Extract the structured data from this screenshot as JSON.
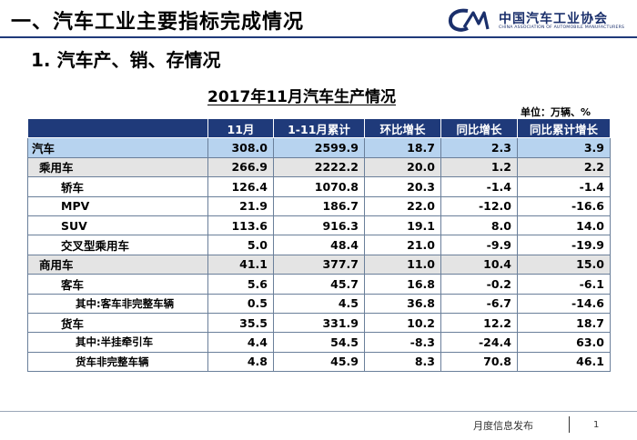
{
  "header": {
    "section_title": "一、汽车工业主要指标完成情况",
    "logo_cn": "中国汽车工业协会",
    "logo_en": "CHINA ASSOCIATION OF AUTOMOBILE MANUFACTURERS",
    "logo_mark_text": "CA",
    "brand_color": "#1a2f6b"
  },
  "sub_title": "1. 汽车产、销、存情况",
  "table": {
    "title": "2017年11月汽车生产情况",
    "unit": "单位：万辆、%",
    "columns": [
      "",
      "11月",
      "1-11月累计",
      "环比增长",
      "同比增长",
      "同比累计增长"
    ],
    "rows": [
      {
        "name": "汽车",
        "level": 0,
        "values": [
          "308.0",
          "2599.9",
          "18.7",
          "2.3",
          "3.9"
        ]
      },
      {
        "name": "乘用车",
        "level": 1,
        "values": [
          "266.9",
          "2222.2",
          "20.0",
          "1.2",
          "2.2"
        ]
      },
      {
        "name": "轿车",
        "level": 2,
        "values": [
          "126.4",
          "1070.8",
          "20.3",
          "-1.4",
          "-1.4"
        ]
      },
      {
        "name": "MPV",
        "level": 2,
        "values": [
          "21.9",
          "186.7",
          "22.0",
          "-12.0",
          "-16.6"
        ]
      },
      {
        "name": "SUV",
        "level": 2,
        "values": [
          "113.6",
          "916.3",
          "19.1",
          "8.0",
          "14.0"
        ]
      },
      {
        "name": "交叉型乘用车",
        "level": 2,
        "values": [
          "5.0",
          "48.4",
          "21.0",
          "-9.9",
          "-19.9"
        ]
      },
      {
        "name": "商用车",
        "level": 1,
        "values": [
          "41.1",
          "377.7",
          "11.0",
          "10.4",
          "15.0"
        ]
      },
      {
        "name": "客车",
        "level": 2,
        "values": [
          "5.6",
          "45.7",
          "16.8",
          "-0.2",
          "-6.1"
        ]
      },
      {
        "name": "其中:客车非完整车辆",
        "level": 3,
        "values": [
          "0.5",
          "4.5",
          "36.8",
          "-6.7",
          "-14.6"
        ]
      },
      {
        "name": "货车",
        "level": 2,
        "values": [
          "35.5",
          "331.9",
          "10.2",
          "12.2",
          "18.7"
        ]
      },
      {
        "name": "其中:半挂牵引车",
        "level": 3,
        "values": [
          "4.4",
          "54.5",
          "-8.3",
          "-24.4",
          "63.0"
        ]
      },
      {
        "name": "货车非完整车辆",
        "level": 3,
        "values": [
          "4.8",
          "45.9",
          "8.3",
          "70.8",
          "46.1"
        ]
      }
    ]
  },
  "footer": {
    "text": "月度信息发布",
    "page": "1"
  }
}
